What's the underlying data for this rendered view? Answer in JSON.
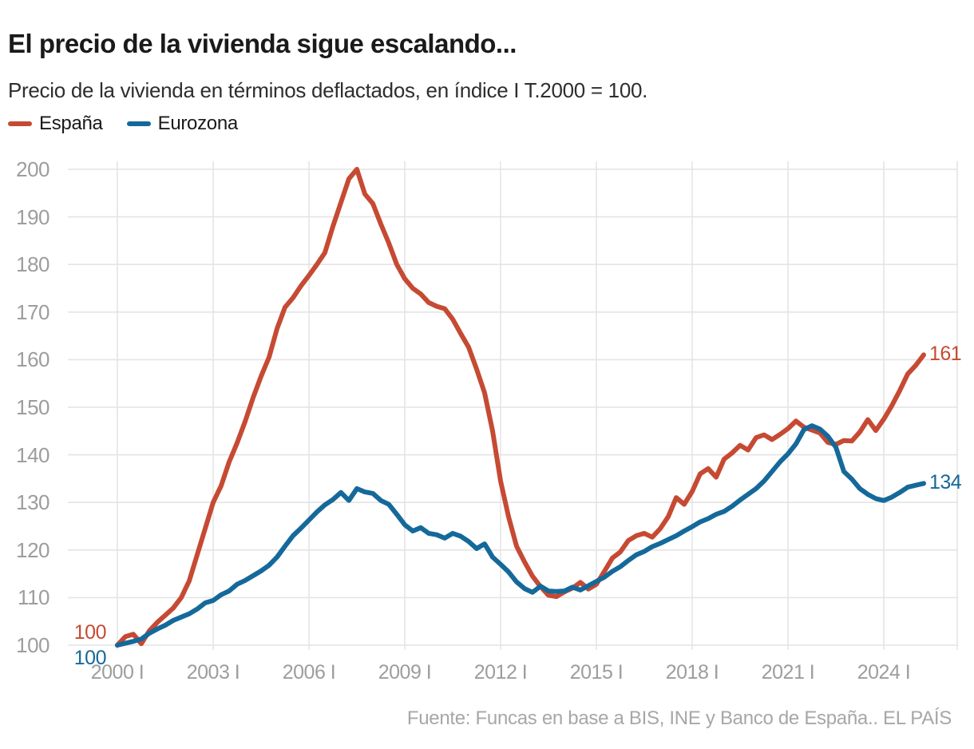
{
  "header": {
    "title": "El precio de la vivienda sigue escalando...",
    "subtitle": "Precio de la vivienda en términos deflactados, en índice I T.2000 = 100."
  },
  "legend": {
    "items": [
      {
        "label": "España",
        "color": "#c64a33"
      },
      {
        "label": "Eurozona",
        "color": "#15699a"
      }
    ]
  },
  "annotations": {
    "spain_start": "100",
    "eurozone_start": "100",
    "spain_end": "161",
    "eurozone_end": "134"
  },
  "source": "Fuente: Funcas en base a BIS, INE y Banco de España.. EL PAÍS",
  "colors": {
    "spain": "#c64a33",
    "eurozone": "#15699a",
    "gridline": "#e4e4e4",
    "axis_text": "#9d9d9d"
  },
  "chart_data": {
    "type": "line",
    "title": "El precio de la vivienda sigue escalando...",
    "subtitle": "Precio de la vivienda en términos deflactados, en índice I T.2000 = 100.",
    "frequency": "quarterly",
    "x_start": 2000.0,
    "x_step": 0.25,
    "ylim": [
      100,
      200
    ],
    "grid": true,
    "legend_position": "top-left",
    "y_ticks": [
      100,
      110,
      120,
      130,
      140,
      150,
      160,
      170,
      180,
      190,
      200
    ],
    "x_ticks": [
      {
        "label": "2000 I",
        "year": 2000
      },
      {
        "label": "2003 I",
        "year": 2003
      },
      {
        "label": "2006 I",
        "year": 2006
      },
      {
        "label": "2009 I",
        "year": 2009
      },
      {
        "label": "2012 I",
        "year": 2012
      },
      {
        "label": "2015 I",
        "year": 2015
      },
      {
        "label": "2018 I",
        "year": 2018
      },
      {
        "label": "2021 I",
        "year": 2021
      },
      {
        "label": "2024 I",
        "year": 2024
      }
    ],
    "series": [
      {
        "name": "España",
        "color": "#c64a33",
        "start_value": 100,
        "end_value": 161,
        "values": [
          100,
          101.8,
          102.3,
          100.3,
          103.0,
          104.8,
          106.3,
          107.8,
          110.0,
          113.5,
          119.0,
          124.5,
          130.0,
          133.5,
          138.5,
          142.5,
          147.0,
          152.0,
          156.5,
          160.5,
          166.5,
          171.0,
          173.0,
          175.5,
          177.7,
          180.0,
          182.5,
          188.0,
          193.0,
          198.0,
          200.0,
          194.8,
          192.8,
          188.5,
          184.5,
          180.0,
          177.0,
          175.0,
          173.8,
          172.0,
          171.2,
          170.7,
          168.5,
          165.5,
          162.6,
          158.0,
          153.0,
          145.0,
          134.5,
          127.0,
          120.8,
          117.5,
          114.5,
          112.3,
          110.5,
          110.2,
          111.2,
          112.0,
          113.2,
          111.8,
          112.8,
          115.5,
          118.3,
          119.6,
          122.0,
          123.0,
          123.5,
          122.7,
          124.5,
          127.0,
          131.0,
          129.6,
          132.3,
          136.0,
          137.1,
          135.3,
          139.1,
          140.4,
          142.0,
          141.0,
          143.6,
          144.2,
          143.2,
          144.3,
          145.5,
          147.1,
          145.8,
          145.2,
          144.6,
          142.6,
          142.2,
          143.0,
          142.9,
          144.8,
          147.4,
          145.1,
          147.5,
          150.3,
          153.5,
          157.0,
          158.8,
          161.0
        ]
      },
      {
        "name": "Eurozona",
        "color": "#15699a",
        "start_value": 100,
        "end_value": 134,
        "values": [
          100,
          100.4,
          100.8,
          101.3,
          102.5,
          103.4,
          104.2,
          105.2,
          105.9,
          106.6,
          107.6,
          108.9,
          109.4,
          110.6,
          111.4,
          112.8,
          113.6,
          114.6,
          115.6,
          116.8,
          118.5,
          120.8,
          123.0,
          124.6,
          126.3,
          128.0,
          129.5,
          130.6,
          132.1,
          130.4,
          132.9,
          132.2,
          131.9,
          130.4,
          129.6,
          127.5,
          125.3,
          124.0,
          124.7,
          123.5,
          123.2,
          122.5,
          123.5,
          122.9,
          121.8,
          120.3,
          121.3,
          118.5,
          117.0,
          115.4,
          113.3,
          111.9,
          111.1,
          112.4,
          111.4,
          111.3,
          111.4,
          112.2,
          111.6,
          112.5,
          113.4,
          114.3,
          115.5,
          116.5,
          117.8,
          119.0,
          119.7,
          120.7,
          121.4,
          122.2,
          123.0,
          124.0,
          124.9,
          125.9,
          126.6,
          127.5,
          128.1,
          129.2,
          130.5,
          131.7,
          132.9,
          134.5,
          136.5,
          138.5,
          140.2,
          142.3,
          145.3,
          146.1,
          145.4,
          143.9,
          141.6,
          136.5,
          134.9,
          132.9,
          131.7,
          130.8,
          130.4,
          131.1,
          132.1,
          133.2,
          133.6,
          134.0
        ]
      }
    ]
  }
}
